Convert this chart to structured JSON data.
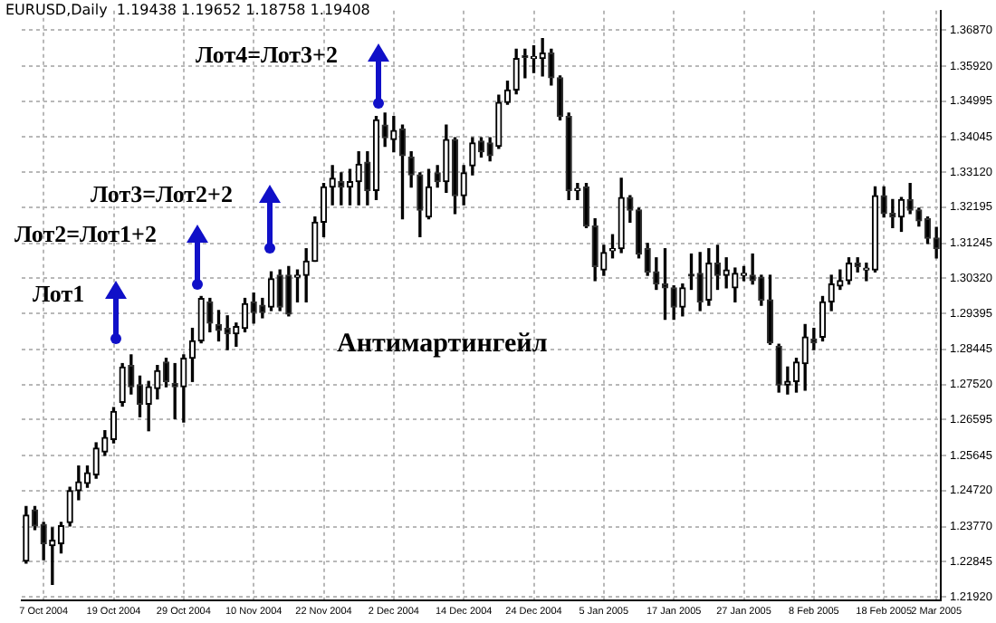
{
  "chart_data": {
    "type": "candlestick",
    "title": "EURUSD,Daily  1.19438 1.19652 1.18758 1.19408",
    "annotations": [
      "Лот1",
      "Лот2=Лот1+2",
      "Лот3=Лот2+2",
      "Лот4=Лот3+2",
      "Антимартингейл"
    ],
    "categories": [
      null,
      null,
      "7 Oct 2004",
      null,
      null,
      null,
      null,
      null,
      null,
      null,
      "19 Oct 2004",
      null,
      null,
      null,
      null,
      null,
      null,
      null,
      "29 Oct 2004",
      null,
      null,
      null,
      null,
      null,
      null,
      null,
      "10 Nov 2004",
      null,
      null,
      null,
      null,
      null,
      null,
      null,
      "22 Nov 2004",
      null,
      null,
      null,
      null,
      null,
      null,
      null,
      "2 Dec 2004",
      null,
      null,
      null,
      null,
      null,
      null,
      null,
      "14 Dec 2004",
      null,
      null,
      null,
      null,
      null,
      null,
      null,
      "24 Dec 2004",
      null,
      null,
      null,
      null,
      null,
      null,
      null,
      "5 Jan 2005",
      null,
      null,
      null,
      null,
      null,
      null,
      null,
      "17 Jan 2005",
      null,
      null,
      null,
      null,
      null,
      null,
      null,
      "27 Jan 2005",
      null,
      null,
      null,
      null,
      null,
      null,
      null,
      "8 Feb 2005",
      null,
      null,
      null,
      null,
      null,
      null,
      null,
      "18 Feb 2005",
      null,
      null,
      null,
      null,
      null,
      "2 Mar 2005"
    ],
    "ohlc": [
      [
        1.2286,
        1.243,
        1.2281,
        1.2407
      ],
      [
        1.2421,
        1.243,
        1.2369,
        1.2379
      ],
      [
        1.2383,
        1.2388,
        1.229,
        1.2332
      ],
      [
        1.2327,
        1.2374,
        1.2225,
        1.2341
      ],
      [
        1.2332,
        1.2388,
        1.2308,
        1.2379
      ],
      [
        1.2388,
        1.2481,
        1.2379,
        1.2472
      ],
      [
        1.2472,
        1.2537,
        1.2448,
        1.2495
      ],
      [
        1.2491,
        1.2537,
        1.2481,
        1.2519
      ],
      [
        1.2514,
        1.2598,
        1.2505,
        1.2584
      ],
      [
        1.2574,
        1.263,
        1.2565,
        1.2612
      ],
      [
        1.2607,
        1.2691,
        1.2598,
        1.2681
      ],
      [
        1.2705,
        1.2807,
        1.2695,
        1.2798
      ],
      [
        1.2802,
        1.283,
        1.2727,
        1.2746
      ],
      [
        1.2751,
        1.2774,
        1.2667,
        1.27
      ],
      [
        1.27,
        1.276,
        1.263,
        1.2746
      ],
      [
        1.2741,
        1.2802,
        1.2714,
        1.2788
      ],
      [
        1.2811,
        1.2821,
        1.2746,
        1.276
      ],
      [
        1.2755,
        1.2807,
        1.2662,
        1.2746
      ],
      [
        1.2746,
        1.283,
        1.2653,
        1.2821
      ],
      [
        1.2821,
        1.29,
        1.276,
        1.2867
      ],
      [
        1.2867,
        1.2984,
        1.2862,
        1.2979
      ],
      [
        1.297,
        1.2979,
        1.2891,
        1.2914
      ],
      [
        1.291,
        1.2947,
        1.2867,
        1.2895
      ],
      [
        1.29,
        1.2933,
        1.2844,
        1.2886
      ],
      [
        1.2886,
        1.2914,
        1.2853,
        1.2905
      ],
      [
        1.29,
        1.2979,
        1.2891,
        1.2965
      ],
      [
        1.297,
        1.2993,
        1.2914,
        1.2942
      ],
      [
        1.2961,
        1.2979,
        1.2928,
        1.2942
      ],
      [
        1.2956,
        1.3049,
        1.2947,
        1.3031
      ],
      [
        1.304,
        1.3054,
        1.2947,
        1.2956
      ],
      [
        1.304,
        1.3063,
        1.2933,
        1.2938
      ],
      [
        1.3035,
        1.3054,
        1.297,
        1.304
      ],
      [
        1.304,
        1.311,
        1.297,
        1.3077
      ],
      [
        1.3077,
        1.3194,
        1.3077,
        1.318
      ],
      [
        1.318,
        1.3282,
        1.3142,
        1.3273
      ],
      [
        1.3273,
        1.3329,
        1.3226,
        1.3296
      ],
      [
        1.3287,
        1.331,
        1.3226,
        1.3273
      ],
      [
        1.3273,
        1.3319,
        1.3226,
        1.3287
      ],
      [
        1.3287,
        1.3366,
        1.3226,
        1.3333
      ],
      [
        1.3338,
        1.3366,
        1.3226,
        1.3264
      ],
      [
        1.3264,
        1.3459,
        1.324,
        1.345
      ],
      [
        1.3436,
        1.3468,
        1.338,
        1.3403
      ],
      [
        1.3398,
        1.3459,
        1.3366,
        1.3422
      ],
      [
        1.3426,
        1.3436,
        1.3189,
        1.3356
      ],
      [
        1.3352,
        1.3366,
        1.3273,
        1.3305
      ],
      [
        1.3305,
        1.331,
        1.3142,
        1.3212
      ],
      [
        1.3194,
        1.3319,
        1.3189,
        1.3273
      ],
      [
        1.331,
        1.3329,
        1.3273,
        1.3287
      ],
      [
        1.3287,
        1.3436,
        1.3259,
        1.3398
      ],
      [
        1.3398,
        1.3403,
        1.3203,
        1.325
      ],
      [
        1.325,
        1.3329,
        1.3226,
        1.331
      ],
      [
        1.3329,
        1.3403,
        1.3305,
        1.3389
      ],
      [
        1.3394,
        1.3403,
        1.3352,
        1.3366
      ],
      [
        1.3389,
        1.3403,
        1.3342,
        1.3356
      ],
      [
        1.338,
        1.3515,
        1.3375,
        1.3496
      ],
      [
        1.3496,
        1.3552,
        1.3491,
        1.3529
      ],
      [
        1.3529,
        1.3636,
        1.3519,
        1.3612
      ],
      [
        1.3617,
        1.3636,
        1.3561,
        1.3615
      ],
      [
        1.3612,
        1.3645,
        1.3575,
        1.3617
      ],
      [
        1.3612,
        1.3664,
        1.3566,
        1.3626
      ],
      [
        1.3626,
        1.3636,
        1.3542,
        1.3561
      ],
      [
        1.3561,
        1.3566,
        1.345,
        1.3459
      ],
      [
        1.3459,
        1.3468,
        1.324,
        1.3264
      ],
      [
        1.3264,
        1.3282,
        1.324,
        1.3268
      ],
      [
        1.3273,
        1.3282,
        1.3166,
        1.317
      ],
      [
        1.317,
        1.3189,
        1.3026,
        1.3063
      ],
      [
        1.3054,
        1.3119,
        1.304,
        1.31
      ],
      [
        1.3105,
        1.3147,
        1.3086,
        1.311
      ],
      [
        1.311,
        1.3296,
        1.31,
        1.3245
      ],
      [
        1.3245,
        1.325,
        1.318,
        1.3212
      ],
      [
        1.3212,
        1.3217,
        1.3086,
        1.3096
      ],
      [
        1.311,
        1.3124,
        1.304,
        1.3049
      ],
      [
        1.3049,
        1.3086,
        1.3003,
        1.3017
      ],
      [
        1.3017,
        1.311,
        1.2924,
        1.3007
      ],
      [
        1.3007,
        1.3012,
        1.2924,
        1.2956
      ],
      [
        1.2956,
        1.3017,
        1.2933,
        1.3007
      ],
      [
        1.304,
        1.3096,
        1.3003,
        1.3038
      ],
      [
        1.3045,
        1.31,
        1.2947,
        1.297
      ],
      [
        1.2975,
        1.311,
        1.2961,
        1.3072
      ],
      [
        1.3072,
        1.3119,
        1.3003,
        1.304
      ],
      [
        1.304,
        1.3086,
        1.3007,
        1.3054
      ],
      [
        1.3007,
        1.3059,
        1.297,
        1.3045
      ],
      [
        1.304,
        1.3063,
        1.3026,
        1.3042
      ],
      [
        1.304,
        1.3096,
        1.3017,
        1.3026
      ],
      [
        1.3035,
        1.304,
        1.2961,
        1.2975
      ],
      [
        1.2975,
        1.304,
        1.2858,
        1.2862
      ],
      [
        1.2853,
        1.2858,
        1.2732,
        1.2751
      ],
      [
        1.2751,
        1.2798,
        1.2727,
        1.276
      ],
      [
        1.276,
        1.2821,
        1.2732,
        1.2811
      ],
      [
        1.2807,
        1.291,
        1.2737,
        1.2877
      ],
      [
        1.2872,
        1.29,
        1.2844,
        1.2862
      ],
      [
        1.2877,
        1.2984,
        1.2867,
        1.297
      ],
      [
        1.297,
        1.304,
        1.2947,
        1.3017
      ],
      [
        1.3012,
        1.3054,
        1.3003,
        1.3026
      ],
      [
        1.3026,
        1.3086,
        1.3017,
        1.3072
      ],
      [
        1.3072,
        1.3086,
        1.3049,
        1.3063
      ],
      [
        1.3054,
        1.3072,
        1.3026,
        1.3059
      ],
      [
        1.3054,
        1.3273,
        1.3049,
        1.325
      ],
      [
        1.325,
        1.3273,
        1.3194,
        1.3203
      ],
      [
        1.3203,
        1.324,
        1.3166,
        1.3194
      ],
      [
        1.3194,
        1.3245,
        1.3156,
        1.324
      ],
      [
        1.324,
        1.3282,
        1.3203,
        1.3212
      ],
      [
        1.3212,
        1.3217,
        1.317,
        1.3184
      ],
      [
        1.3189,
        1.3194,
        1.3124,
        1.3138
      ],
      [
        1.3138,
        1.3166,
        1.3086,
        1.311
      ]
    ],
    "ylim": [
      1.2183,
      1.3738
    ],
    "yticks": [
      {
        "value": 1.3687,
        "label": "1.36870"
      },
      {
        "value": 1.3592,
        "label": "1.35920"
      },
      {
        "value": 1.34995,
        "label": "1.34995"
      },
      {
        "value": 1.34045,
        "label": "1.34045"
      },
      {
        "value": 1.3312,
        "label": "1.33120"
      },
      {
        "value": 1.32195,
        "label": "1.32195"
      },
      {
        "value": 1.31245,
        "label": "1.31245"
      },
      {
        "value": 1.3032,
        "label": "1.30320"
      },
      {
        "value": 1.29395,
        "label": "1.29395"
      },
      {
        "value": 1.28445,
        "label": "1.28445"
      },
      {
        "value": 1.2752,
        "label": "1.27520"
      },
      {
        "value": 1.26595,
        "label": "1.26595"
      },
      {
        "value": 1.25645,
        "label": "1.25645"
      },
      {
        "value": 1.2472,
        "label": "1.24720"
      },
      {
        "value": 1.2377,
        "label": "1.23770"
      },
      {
        "value": 1.22845,
        "label": "1.22845"
      },
      {
        "value": 1.2192,
        "label": "1.21920"
      }
    ],
    "grid": true
  }
}
